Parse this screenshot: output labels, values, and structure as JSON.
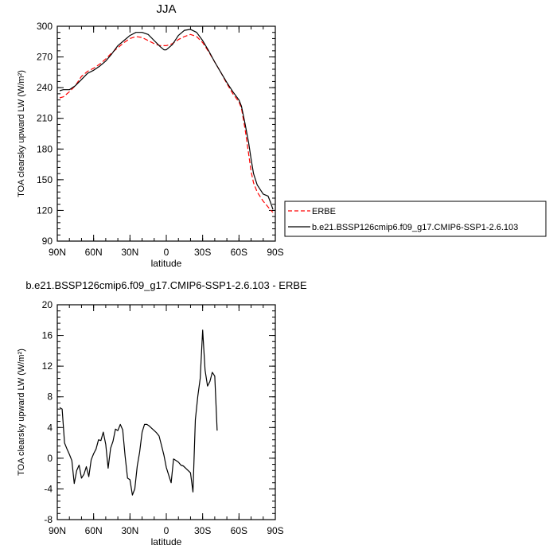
{
  "chart_data": [
    {
      "type": "line",
      "title": "JJA",
      "xlabel": "latitude",
      "ylabel": "TOA clearsky upward LW (W/m²)",
      "xlim": [
        90,
        -90
      ],
      "ylim": [
        90,
        300
      ],
      "x_ticks": [
        {
          "v": 90,
          "label": "90N"
        },
        {
          "v": 60,
          "label": "60N"
        },
        {
          "v": 30,
          "label": "30N"
        },
        {
          "v": 0,
          "label": "0"
        },
        {
          "v": -30,
          "label": "30S"
        },
        {
          "v": -60,
          "label": "60S"
        },
        {
          "v": -90,
          "label": "90S"
        }
      ],
      "y_ticks": [
        90,
        120,
        150,
        180,
        210,
        240,
        270,
        300
      ],
      "legend_position": "right",
      "series": [
        {
          "name": "ERBE",
          "color": "#ff0000",
          "dash": true,
          "points": [
            [
              88,
              230
            ],
            [
              85,
              231
            ],
            [
              80,
              236
            ],
            [
              75,
              242
            ],
            [
              70,
              251
            ],
            [
              65,
              256
            ],
            [
              60,
              259
            ],
            [
              55,
              263
            ],
            [
              50,
              268
            ],
            [
              45,
              274
            ],
            [
              40,
              279
            ],
            [
              35,
              284
            ],
            [
              30,
              288
            ],
            [
              25,
              290
            ],
            [
              20,
              289
            ],
            [
              15,
              286
            ],
            [
              10,
              283
            ],
            [
              5,
              281
            ],
            [
              0,
              281
            ],
            [
              -5,
              283
            ],
            [
              -10,
              287
            ],
            [
              -15,
              290
            ],
            [
              -20,
              292
            ],
            [
              -25,
              290
            ],
            [
              -30,
              284
            ],
            [
              -35,
              275
            ],
            [
              -40,
              265
            ],
            [
              -45,
              255
            ],
            [
              -50,
              244
            ],
            [
              -55,
              234
            ],
            [
              -60,
              226
            ],
            [
              -62,
              220
            ],
            [
              -65,
              200
            ],
            [
              -68,
              175
            ],
            [
              -70,
              158
            ],
            [
              -72,
              147
            ],
            [
              -75,
              138
            ],
            [
              -80,
              129
            ],
            [
              -85,
              122
            ],
            [
              -88,
              118
            ]
          ]
        },
        {
          "name": "b.e21.BSSP126cmip6.f09_g17.CMIP6-SSP1-2.6.103",
          "color": "#000000",
          "dash": false,
          "points": [
            [
              88,
              237
            ],
            [
              85,
              238
            ],
            [
              80,
              238
            ],
            [
              75,
              242
            ],
            [
              70,
              248
            ],
            [
              65,
              254
            ],
            [
              60,
              257
            ],
            [
              55,
              261
            ],
            [
              50,
              266
            ],
            [
              45,
              273
            ],
            [
              40,
              281
            ],
            [
              35,
              286
            ],
            [
              30,
              291
            ],
            [
              25,
              294
            ],
            [
              20,
              294
            ],
            [
              15,
              292
            ],
            [
              10,
              286
            ],
            [
              5,
              280
            ],
            [
              2,
              277
            ],
            [
              0,
              277
            ],
            [
              -5,
              282
            ],
            [
              -10,
              291
            ],
            [
              -15,
              296
            ],
            [
              -20,
              297
            ],
            [
              -25,
              294
            ],
            [
              -30,
              286
            ],
            [
              -35,
              276
            ],
            [
              -40,
              265
            ],
            [
              -45,
              255
            ],
            [
              -50,
              245
            ],
            [
              -55,
              236
            ],
            [
              -60,
              228
            ],
            [
              -62,
              222
            ],
            [
              -65,
              205
            ],
            [
              -68,
              186
            ],
            [
              -70,
              170
            ],
            [
              -72,
              156
            ],
            [
              -75,
              145
            ],
            [
              -80,
              136
            ],
            [
              -84,
              134
            ],
            [
              -86,
              128
            ],
            [
              -88,
              121
            ]
          ]
        }
      ]
    },
    {
      "type": "line",
      "title": "b.e21.BSSP126cmip6.f09_g17.CMIP6-SSP1-2.6.103 - ERBE",
      "xlabel": "latitude",
      "ylabel": "TOA clearsky upward LW (W/m²)",
      "xlim": [
        90,
        -90
      ],
      "ylim": [
        -8,
        20
      ],
      "x_ticks": [
        {
          "v": 90,
          "label": "90N"
        },
        {
          "v": 60,
          "label": "60N"
        },
        {
          "v": 30,
          "label": "30N"
        },
        {
          "v": 0,
          "label": "0"
        },
        {
          "v": -30,
          "label": "30S"
        },
        {
          "v": -60,
          "label": "60S"
        },
        {
          "v": -90,
          "label": "90S"
        }
      ],
      "y_ticks": [
        -8,
        -4,
        0,
        4,
        8,
        12,
        16,
        20
      ],
      "series": [
        {
          "name": "",
          "color": "#000000",
          "dash": false,
          "points": [
            [
              88,
              6.6
            ],
            [
              86,
              6.4
            ],
            [
              84,
              2.0
            ],
            [
              82,
              1.2
            ],
            [
              80,
              0.5
            ],
            [
              78,
              -0.3
            ],
            [
              76,
              -3.3
            ],
            [
              74,
              -1.6
            ],
            [
              72,
              -0.9
            ],
            [
              70,
              -2.6
            ],
            [
              68,
              -2.1
            ],
            [
              66,
              -1.1
            ],
            [
              64,
              -2.4
            ],
            [
              62,
              -0.2
            ],
            [
              60,
              0.6
            ],
            [
              58,
              1.2
            ],
            [
              56,
              2.4
            ],
            [
              54,
              2.3
            ],
            [
              52,
              3.4
            ],
            [
              50,
              1.8
            ],
            [
              48,
              -1.3
            ],
            [
              46,
              1.3
            ],
            [
              44,
              2.2
            ],
            [
              42,
              3.8
            ],
            [
              40,
              3.6
            ],
            [
              38,
              4.4
            ],
            [
              36,
              3.7
            ],
            [
              34,
              0.3
            ],
            [
              32,
              -2.6
            ],
            [
              30,
              -2.8
            ],
            [
              28,
              -4.8
            ],
            [
              26,
              -4.0
            ],
            [
              24,
              -1.0
            ],
            [
              22,
              0.8
            ],
            [
              20,
              3.4
            ],
            [
              18,
              4.4
            ],
            [
              16,
              4.4
            ],
            [
              14,
              4.2
            ],
            [
              12,
              3.9
            ],
            [
              10,
              3.6
            ],
            [
              8,
              3.3
            ],
            [
              6,
              2.9
            ],
            [
              4,
              1.7
            ],
            [
              2,
              0.4
            ],
            [
              0,
              -1.2
            ],
            [
              -2,
              -2.2
            ],
            [
              -4,
              -3.2
            ],
            [
              -6,
              -0.1
            ],
            [
              -8,
              -0.3
            ],
            [
              -10,
              -0.5
            ],
            [
              -12,
              -0.9
            ],
            [
              -14,
              -1.0
            ],
            [
              -16,
              -1.3
            ],
            [
              -18,
              -1.6
            ],
            [
              -20,
              -1.9
            ],
            [
              -22,
              -4.4
            ],
            [
              -24,
              5.0
            ],
            [
              -26,
              8.1
            ],
            [
              -28,
              10.4
            ],
            [
              -30,
              16.7
            ],
            [
              -32,
              11.5
            ],
            [
              -34,
              9.4
            ],
            [
              -36,
              10.0
            ],
            [
              -38,
              11.2
            ],
            [
              -40,
              10.7
            ],
            [
              -42,
              3.6
            ]
          ]
        }
      ]
    }
  ]
}
